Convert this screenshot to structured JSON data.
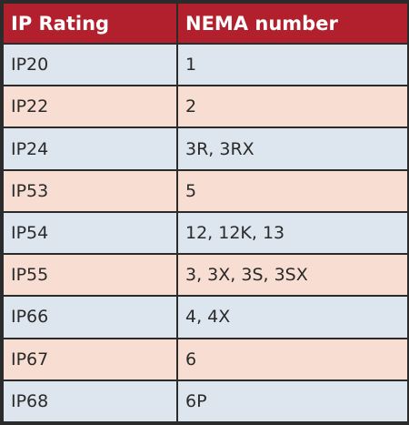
{
  "table": {
    "headers": [
      "IP Rating",
      "NEMA number"
    ],
    "rows": [
      {
        "ip": "IP20",
        "nema": "1"
      },
      {
        "ip": "IP22",
        "nema": "2"
      },
      {
        "ip": "IP24",
        "nema": "3R, 3RX"
      },
      {
        "ip": "IP53",
        "nema": "5"
      },
      {
        "ip": "IP54",
        "nema": "12, 12K, 13"
      },
      {
        "ip": "IP55",
        "nema": "3, 3X, 3S, 3SX"
      },
      {
        "ip": "IP66",
        "nema": "4, 4X"
      },
      {
        "ip": "IP67",
        "nema": "6"
      },
      {
        "ip": "IP68",
        "nema": "6P"
      }
    ]
  },
  "colors": {
    "header_bg": "#b21f2d",
    "header_text": "#ffffff",
    "row_alt_1": "#dde6ee",
    "row_alt_2": "#f7ddd2",
    "border": "#2b2b2b"
  }
}
